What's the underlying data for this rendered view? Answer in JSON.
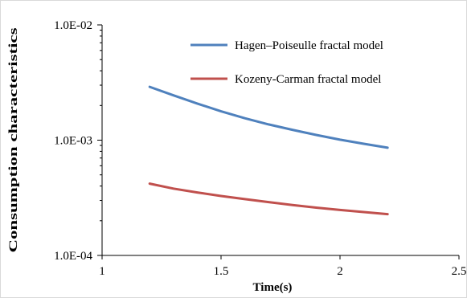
{
  "chart_data": {
    "type": "line",
    "xlabel": "Time(s)",
    "ylabel": "Consumption characteristics",
    "xlim": [
      1,
      2.5
    ],
    "ylim": [
      0.0001,
      0.01
    ],
    "yscale": "log",
    "grid": false,
    "legend_position": "top-right",
    "x_ticks": [
      1,
      1.5,
      2,
      2.5
    ],
    "x_tick_labels": [
      "1",
      "1.5",
      "2",
      "2.5"
    ],
    "y_ticks": [
      0.0001,
      0.001,
      0.01
    ],
    "y_tick_labels": [
      "1.0E-04",
      "1.0E-03",
      "1.0E-02"
    ],
    "series": [
      {
        "name": "Hagen–Poiseulle fractal model",
        "color": "#4f81bd",
        "x": [
          1.2,
          1.3,
          1.4,
          1.5,
          1.6,
          1.7,
          1.8,
          1.9,
          2.0,
          2.1,
          2.2
        ],
        "y": [
          0.0029,
          0.00245,
          0.00208,
          0.00178,
          0.00155,
          0.00137,
          0.00123,
          0.00111,
          0.00101,
          0.00093,
          0.00086
        ]
      },
      {
        "name": "Kozeny-Carman fractal model",
        "color": "#c0504d",
        "x": [
          1.2,
          1.3,
          1.4,
          1.5,
          1.6,
          1.7,
          1.8,
          1.9,
          2.0,
          2.1,
          2.2
        ],
        "y": [
          0.00042,
          0.00038,
          0.000352,
          0.000328,
          0.000308,
          0.00029,
          0.000274,
          0.00026,
          0.000248,
          0.000238,
          0.000228
        ]
      }
    ]
  }
}
